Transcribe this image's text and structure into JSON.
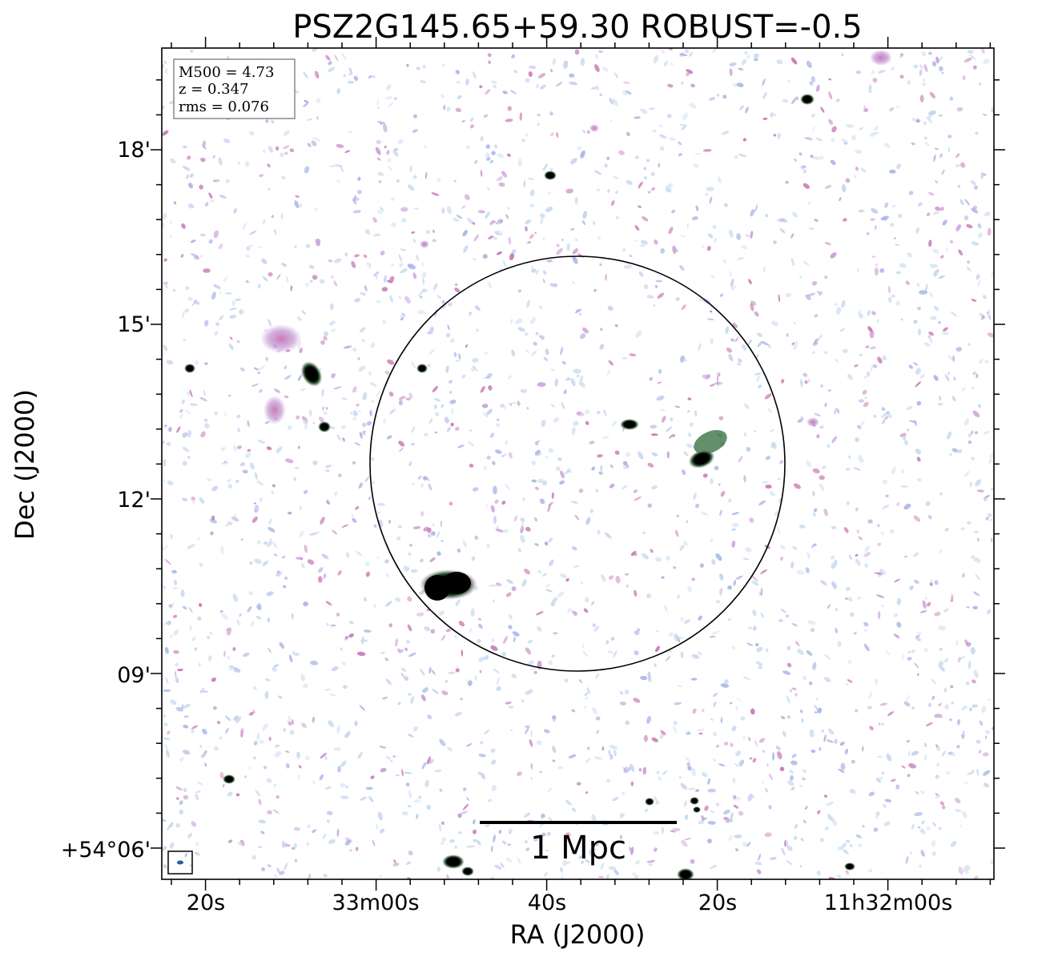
{
  "chart_data": {
    "type": "heatmap",
    "title": "PSZ2G145.65+59.30 ROBUST=-0.5",
    "xlabel": "RA (J2000)",
    "ylabel": "Dec (J2000)",
    "x_ticks": [
      "20s",
      "33m00s",
      "40s",
      "20s",
      "11h32m00s"
    ],
    "y_ticks": [
      "+54°06'",
      "09'",
      "12'",
      "15'",
      "18'"
    ],
    "info": {
      "m500": "M500 = 4.73",
      "z": "z = 0.347",
      "rms": "rms = 0.076"
    },
    "scale_bar_label": "1 Mpc",
    "colors": {
      "noise_light": "#c9dcef",
      "noise_blue": "#aab8e8",
      "noise_purple": "#c9a0d8",
      "noise_pink": "#c77ab6",
      "source_green": "#2e6b3a",
      "source_core": "#000000",
      "circle": "#000000"
    }
  }
}
